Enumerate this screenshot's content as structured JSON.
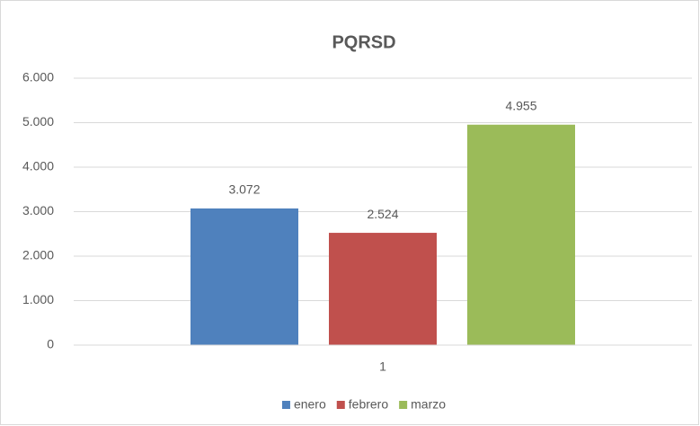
{
  "chart_data": {
    "type": "bar",
    "title": "PQRSD",
    "categories": [
      "1"
    ],
    "series": [
      {
        "name": "enero",
        "color": "#4f81bd",
        "values": [
          3072
        ],
        "value_labels": [
          "3.072"
        ]
      },
      {
        "name": "febrero",
        "color": "#c0504d",
        "values": [
          2524
        ],
        "value_labels": [
          "2.524"
        ]
      },
      {
        "name": "marzo",
        "color": "#9bbb59",
        "values": [
          4955
        ],
        "value_labels": [
          "4.955"
        ]
      }
    ],
    "ylim": [
      0,
      6000
    ],
    "yticks": [
      0,
      {
        "value": 1000,
        "label": "1.000"
      },
      {
        "value": 2000,
        "label": "2.000"
      },
      {
        "value": 3000,
        "label": "3.000"
      },
      {
        "value": 4000,
        "label": "4.000"
      },
      {
        "value": 5000,
        "label": "5.000"
      },
      {
        "value": 6000,
        "label": "6.000"
      }
    ],
    "grid": true,
    "legend": "bottom"
  }
}
